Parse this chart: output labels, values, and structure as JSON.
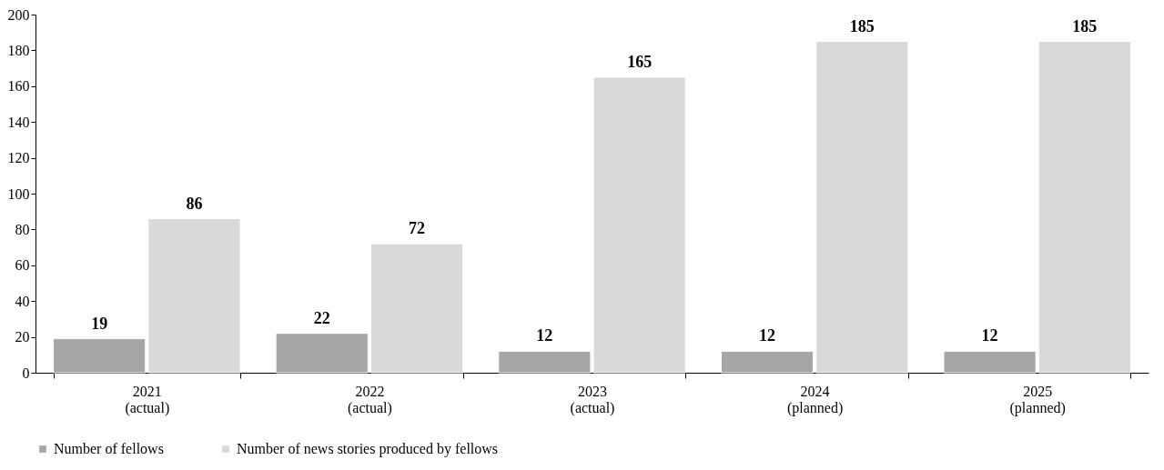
{
  "chart_data": {
    "type": "bar",
    "categories": [
      "2021\n(actual)",
      "2022\n(actual)",
      "2023\n(actual)",
      "2024\n(planned)",
      "2025\n(planned)"
    ],
    "series": [
      {
        "name": "Number of fellows",
        "color": "#a6a6a6",
        "values": [
          19,
          22,
          12,
          12,
          12
        ]
      },
      {
        "name": "Number of news stories produced by fellows",
        "color": "#d9d9d9",
        "values": [
          86,
          72,
          165,
          185,
          185
        ]
      }
    ],
    "ylim": [
      0,
      200
    ],
    "yticks": [
      0,
      20,
      40,
      60,
      80,
      100,
      120,
      140,
      160,
      180,
      200
    ],
    "grid": false,
    "legend": "bottom",
    "data_labels": true
  }
}
